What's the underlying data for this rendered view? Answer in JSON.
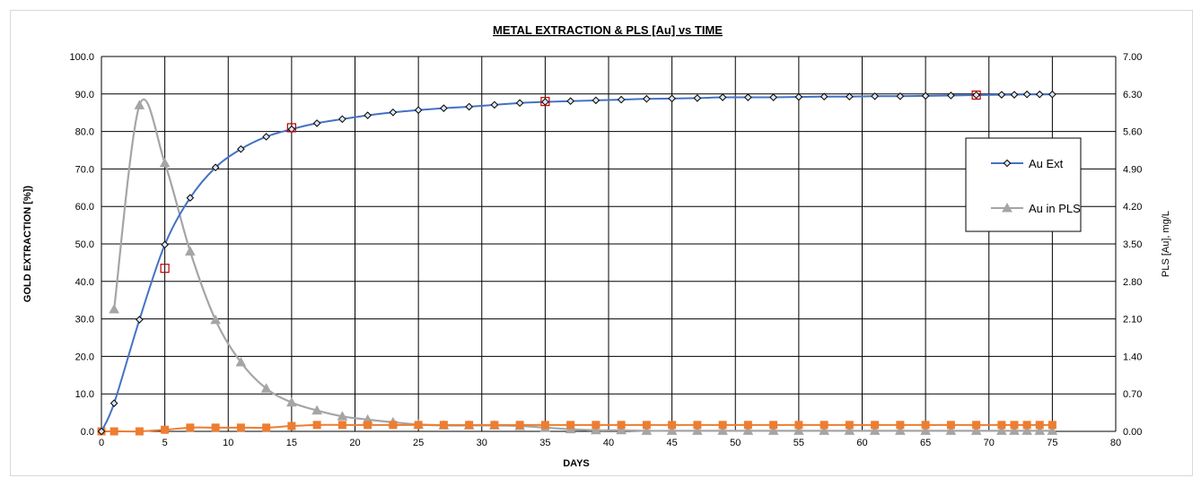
{
  "chart_data": {
    "type": "line",
    "title": "METAL EXTRACTION & PLS [Au] vs TIME",
    "xlabel": "DAYS",
    "ylabel": "GOLD EXTRACTION [%])",
    "y2label": "PLS [Au], mg/L",
    "xlim": [
      0,
      80
    ],
    "ylim": [
      0,
      100
    ],
    "y2lim": [
      0,
      7
    ],
    "x_ticks": [
      "0",
      "5",
      "10",
      "15",
      "20",
      "25",
      "30",
      "35",
      "40",
      "45",
      "50",
      "55",
      "60",
      "65",
      "70",
      "75",
      "80"
    ],
    "y_ticks": [
      "0.0",
      "10.0",
      "20.0",
      "30.0",
      "40.0",
      "50.0",
      "60.0",
      "70.0",
      "80.0",
      "90.0",
      "100.0"
    ],
    "y2_ticks": [
      "0.00",
      "0.70",
      "1.40",
      "2.10",
      "2.80",
      "3.50",
      "4.20",
      "4.90",
      "5.60",
      "6.30",
      "7.00"
    ],
    "grid": true,
    "legend_position": "right",
    "series": [
      {
        "name": "Au Ext",
        "axis": "left",
        "color": "#4472c4",
        "marker": "diamond",
        "x": [
          0,
          1,
          3,
          5,
          7,
          9,
          11,
          13,
          15,
          17,
          19,
          21,
          23,
          25,
          27,
          29,
          31,
          33,
          35,
          37,
          39,
          41,
          43,
          45,
          47,
          49,
          51,
          53,
          55,
          57,
          59,
          61,
          63,
          65,
          67,
          69,
          71,
          72,
          73,
          74,
          75
        ],
        "y": [
          0,
          7.5,
          29.8,
          49.8,
          62.3,
          70.4,
          75.3,
          78.6,
          80.6,
          82.2,
          83.3,
          84.3,
          85.1,
          85.7,
          86.2,
          86.6,
          87.1,
          87.6,
          87.9,
          88.1,
          88.3,
          88.5,
          88.7,
          88.8,
          88.9,
          89.1,
          89.1,
          89.1,
          89.2,
          89.3,
          89.3,
          89.4,
          89.4,
          89.5,
          89.6,
          89.7,
          89.8,
          89.8,
          89.9,
          89.9,
          89.9
        ]
      },
      {
        "name": "Au in PLS",
        "axis": "right",
        "color": "#a5a5a5",
        "marker": "triangle",
        "x": [
          1,
          3,
          5,
          7,
          9,
          11,
          13,
          15,
          17,
          19,
          21,
          23,
          25,
          27,
          29,
          31,
          33,
          35,
          37,
          39,
          41,
          43,
          45,
          47,
          49,
          51,
          53,
          55,
          57,
          59,
          61,
          63,
          65,
          67,
          69,
          71,
          72,
          73,
          74,
          75
        ],
        "y": [
          2.28,
          6.09,
          5.01,
          3.36,
          2.08,
          1.29,
          0.8,
          0.54,
          0.39,
          0.28,
          0.22,
          0.17,
          0.13,
          0.11,
          0.11,
          0.11,
          0.1,
          0.07,
          0.04,
          0.02,
          0.02,
          0.01,
          0.01,
          0.01,
          0.01,
          0.01,
          0.01,
          0.01,
          0.01,
          0.01,
          0.01,
          0.01,
          0.01,
          0.01,
          0.01,
          0.01,
          0.01,
          0.01,
          0.01,
          0.01
        ]
      },
      {
        "axis": "right",
        "color": "#ed7d31",
        "marker": "square",
        "x": [
          0,
          1,
          3,
          5,
          7,
          9,
          11,
          13,
          15,
          17,
          19,
          21,
          23,
          25,
          27,
          29,
          31,
          33,
          35,
          37,
          39,
          41,
          43,
          45,
          47,
          49,
          51,
          53,
          55,
          57,
          59,
          61,
          63,
          65,
          67,
          69,
          71,
          72,
          73,
          74,
          75
        ],
        "y": [
          0.0,
          0.0,
          0.0,
          0.03,
          0.07,
          0.07,
          0.07,
          0.07,
          0.1,
          0.12,
          0.12,
          0.12,
          0.12,
          0.12,
          0.12,
          0.12,
          0.12,
          0.12,
          0.12,
          0.12,
          0.12,
          0.12,
          0.12,
          0.12,
          0.12,
          0.12,
          0.12,
          0.12,
          0.12,
          0.12,
          0.12,
          0.12,
          0.12,
          0.12,
          0.12,
          0.12,
          0.12,
          0.12,
          0.12,
          0.12,
          0.12
        ]
      },
      {
        "axis": "left",
        "color": "#c00000",
        "marker": "open-square",
        "line": false,
        "x": [
          5,
          15,
          35,
          69
        ],
        "y": [
          43.5,
          81.0,
          88.0,
          89.7
        ]
      }
    ]
  }
}
